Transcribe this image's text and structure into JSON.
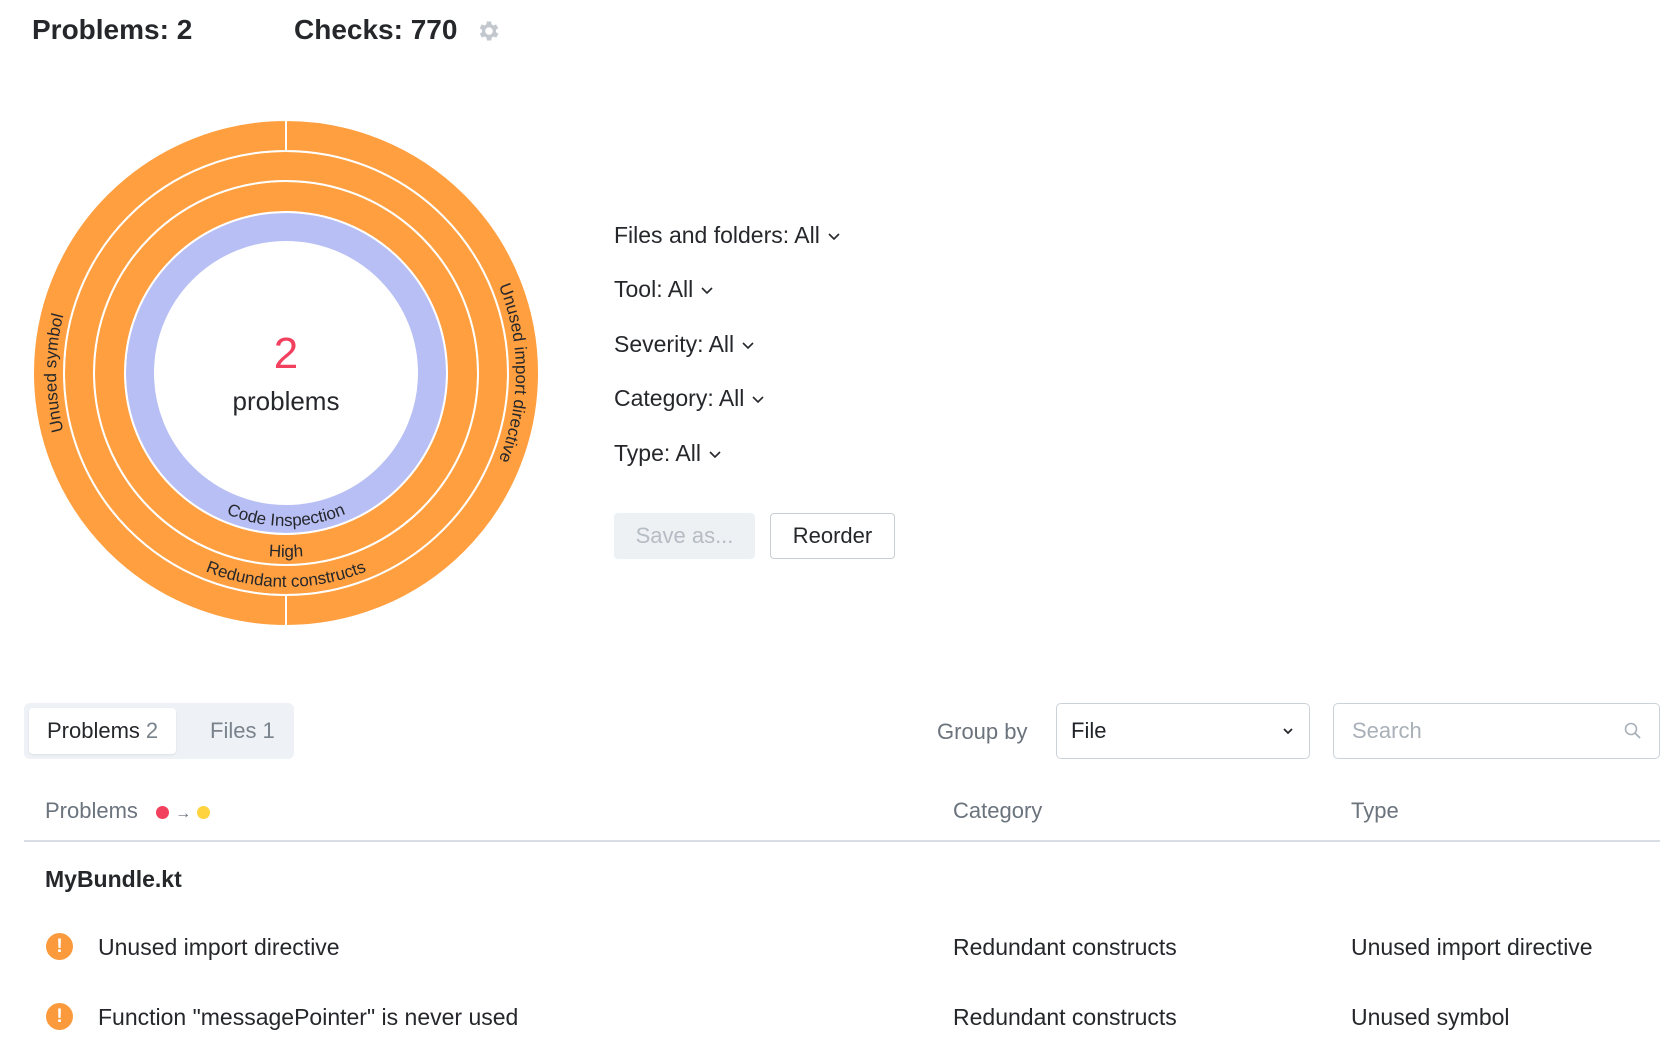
{
  "header": {
    "problems_label": "Problems: 2",
    "checks_label": "Checks: 770",
    "settings_icon": "gear-icon"
  },
  "chart_data": {
    "type": "pie",
    "center_value": "2",
    "center_label": "problems",
    "rings": [
      {
        "segments": [
          {
            "label": "Code Inspection",
            "value": 2,
            "color": "#B8BFF4"
          }
        ]
      },
      {
        "segments": [
          {
            "label": "High",
            "value": 2,
            "color": "#FF9F3F"
          }
        ]
      },
      {
        "segments": [
          {
            "label": "Redundant constructs",
            "value": 2,
            "color": "#FF9F3F"
          }
        ]
      },
      {
        "segments": [
          {
            "label": "Unused import directive",
            "value": 1,
            "color": "#FF9F3F"
          },
          {
            "label": "Unused symbol",
            "value": 1,
            "color": "#FF9F3F"
          }
        ]
      }
    ]
  },
  "filters": [
    {
      "label": "Files and folders: All"
    },
    {
      "label": "Tool: All"
    },
    {
      "label": "Severity: All"
    },
    {
      "label": "Category: All"
    },
    {
      "label": "Type: All"
    }
  ],
  "buttons": {
    "save_as": "Save as...",
    "reorder": "Reorder"
  },
  "tabs": [
    {
      "label": "Problems",
      "count": "2"
    },
    {
      "label": "Files",
      "count": "1"
    }
  ],
  "group_by": {
    "label": "Group by",
    "value": "File"
  },
  "search": {
    "placeholder": "Search",
    "value": ""
  },
  "table": {
    "columns": [
      "Problems",
      "Category",
      "Type"
    ],
    "severity_colors": {
      "from": "#F2405F",
      "to": "#FFD33D"
    },
    "groups": [
      {
        "file": "MyBundle.kt",
        "rows": [
          {
            "problem": "Unused import directive",
            "category": "Redundant constructs",
            "type": "Unused import directive"
          },
          {
            "problem": "Function \"messagePointer\" is never used",
            "category": "Redundant constructs",
            "type": "Unused symbol"
          }
        ]
      }
    ]
  }
}
